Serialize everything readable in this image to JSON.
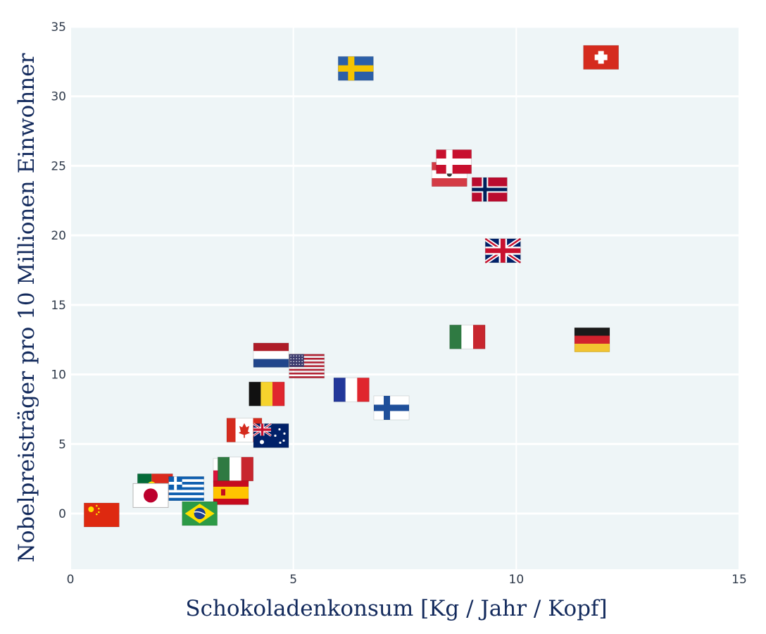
{
  "chart_data": {
    "type": "scatter",
    "title": "",
    "xlabel": "Schokoladenkonsum [Kg / Jahr / Kopf]",
    "ylabel": "Nobelpreisträger pro 10 Millionen Einwohner",
    "xlim": [
      0,
      15
    ],
    "ylim": [
      -4,
      35
    ],
    "xticks": [
      0,
      5,
      10,
      15
    ],
    "yticks": [
      0,
      5,
      10,
      15,
      20,
      25,
      30,
      35
    ],
    "grid": true,
    "legend": "none",
    "marker": "country flags",
    "points": [
      {
        "flag": "sweden-flag",
        "x": 6.4,
        "y": 32.0
      },
      {
        "flag": "switzerland-flag",
        "x": 11.9,
        "y": 32.8
      },
      {
        "flag": "austria-flag",
        "x": 8.5,
        "y": 24.4
      },
      {
        "flag": "denmark-flag",
        "x": 8.6,
        "y": 25.3
      },
      {
        "flag": "norway-flag",
        "x": 9.4,
        "y": 23.3
      },
      {
        "flag": "united-kingdom-flag",
        "x": 9.7,
        "y": 18.9
      },
      {
        "flag": "italy-flag",
        "x": 8.9,
        "y": 12.7
      },
      {
        "flag": "germany-flag",
        "x": 11.7,
        "y": 12.5
      },
      {
        "flag": "netherlands-flag",
        "x": 4.5,
        "y": 11.4
      },
      {
        "flag": "usa-flag",
        "x": 5.3,
        "y": 10.6
      },
      {
        "flag": "belgium-flag",
        "x": 4.4,
        "y": 8.6
      },
      {
        "flag": "france-flag",
        "x": 6.3,
        "y": 8.9
      },
      {
        "flag": "finland-flag",
        "x": 7.2,
        "y": 7.6
      },
      {
        "flag": "canada-flag",
        "x": 3.9,
        "y": 6.0
      },
      {
        "flag": "australia-flag",
        "x": 4.5,
        "y": 5.6
      },
      {
        "flag": "poland-flag",
        "x": 3.6,
        "y": 3.1
      },
      {
        "flag": "italy-flag",
        "x": 3.7,
        "y": 3.2
      },
      {
        "flag": "spain-flag",
        "x": 3.6,
        "y": 1.5
      },
      {
        "flag": "portugal-flag",
        "x": 1.9,
        "y": 2.0
      },
      {
        "flag": "greece-flag",
        "x": 2.6,
        "y": 1.8
      },
      {
        "flag": "japan-flag",
        "x": 1.8,
        "y": 1.3
      },
      {
        "flag": "brazil-flag",
        "x": 2.9,
        "y": 0.0
      },
      {
        "flag": "china-flag",
        "x": 0.7,
        "y": -0.1
      }
    ]
  }
}
